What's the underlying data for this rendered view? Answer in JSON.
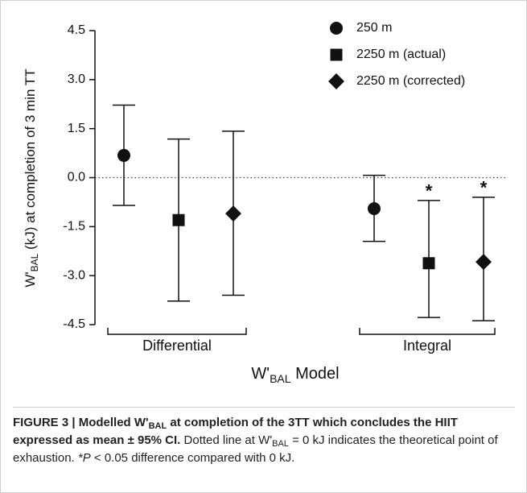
{
  "chart_data": {
    "type": "errorbar",
    "y_label": {
      "main": "W'",
      "sub": "BAL",
      "rest": " (kJ) at completion of 3 min TT"
    },
    "x_label": {
      "main": "W'",
      "sub": "BAL",
      "rest": " Model"
    },
    "categories": [
      "Differential",
      "Integral"
    ],
    "series": [
      {
        "name": "250 m",
        "marker": "circle",
        "color": "#111111",
        "values": [
          0.68,
          -0.95
        ],
        "lower": [
          -0.85,
          -1.95
        ],
        "upper": [
          2.22,
          0.07
        ],
        "labels": [
          null,
          null
        ]
      },
      {
        "name": "2250 m (actual)",
        "marker": "square",
        "color": "#111111",
        "values": [
          -1.3,
          -2.62
        ],
        "lower": [
          -3.78,
          -4.28
        ],
        "upper": [
          1.18,
          -0.7
        ],
        "labels": [
          null,
          "*"
        ]
      },
      {
        "name": "2250 m (corrected)",
        "marker": "diamond",
        "color": "#111111",
        "values": [
          -1.1,
          -2.58
        ],
        "lower": [
          -3.6,
          -4.38
        ],
        "upper": [
          1.42,
          -0.6
        ],
        "labels": [
          null,
          "*"
        ]
      }
    ],
    "ylim": [
      -4.5,
      4.5
    ],
    "yticks": [
      {
        "value": 4.5,
        "label": "4.5"
      },
      {
        "value": 3,
        "label": "3.0"
      },
      {
        "value": 1.5,
        "label": "1.5"
      },
      {
        "value": 0,
        "label": "0.0"
      },
      {
        "value": -1.5,
        "label": "-1.5"
      },
      {
        "value": -3,
        "label": "-3.0"
      },
      {
        "value": -4.5,
        "label": "-4.5"
      }
    ],
    "reference_line": 0,
    "legend": "top-right"
  },
  "caption": [
    "FIGURE 3 | Modelled W'",
    "BAL",
    " at completion of the 3TT which concludes the HIIT expressed as mean ± 95% CI.",
    " Dotted line at W'",
    "BAL",
    " = 0 kJ indicates the theoretical point of exhaustion. ",
    "*P",
    " < 0.05 difference compared with 0 kJ."
  ]
}
